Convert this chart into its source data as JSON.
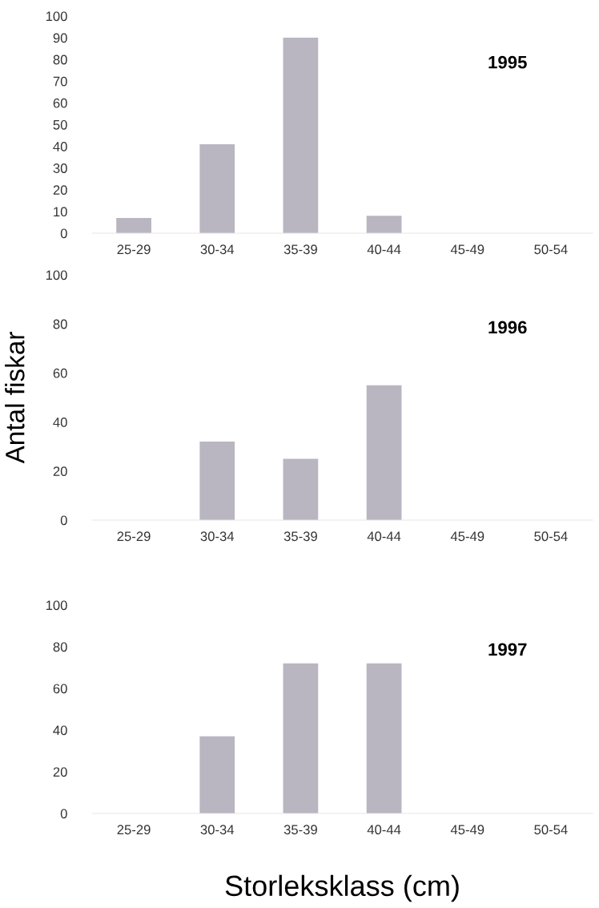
{
  "chart_data": [
    {
      "type": "bar",
      "title": "1995",
      "categories": [
        "25-29",
        "30-34",
        "35-39",
        "40-44",
        "45-49",
        "50-54"
      ],
      "values": [
        7,
        41,
        90,
        8,
        0,
        0
      ],
      "color": "#b9b5c1",
      "ylim": [
        0,
        100
      ],
      "yticks": [
        0,
        10,
        20,
        30,
        40,
        50,
        60,
        70,
        80,
        90,
        100
      ],
      "grid": false
    },
    {
      "type": "bar",
      "title": "1996",
      "ylabel": "Antal fiskar",
      "categories": [
        "25-29",
        "30-34",
        "35-39",
        "40-44",
        "45-49",
        "50-54"
      ],
      "values": [
        0,
        32,
        25,
        55,
        0,
        0
      ],
      "color": "#b9b5c1",
      "ylim": [
        0,
        100
      ],
      "yticks": [
        0,
        20,
        40,
        60,
        80,
        100
      ],
      "grid": false
    },
    {
      "type": "bar",
      "title": "1997",
      "xlabel": "Storleksklass (cm)",
      "categories": [
        "25-29",
        "30-34",
        "35-39",
        "40-44",
        "45-49",
        "50-54"
      ],
      "values": [
        0,
        37,
        72,
        72,
        0,
        0
      ],
      "color": "#b9b5c1",
      "ylim": [
        0,
        100
      ],
      "yticks": [
        0,
        20,
        40,
        60,
        80,
        100
      ],
      "grid": false
    }
  ]
}
